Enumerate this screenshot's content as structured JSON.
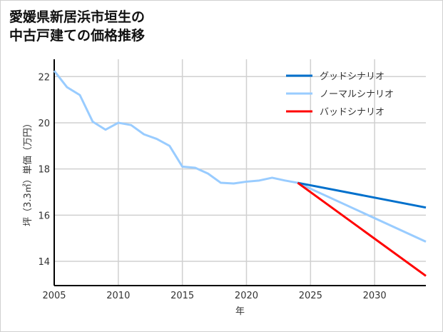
{
  "title_lines": [
    "愛媛県新居浜市垣生の",
    "中古戸建ての価格推移"
  ],
  "chart_data": {
    "type": "line",
    "title": "愛媛県新居浜市垣生の中古戸建ての価格推移",
    "xlabel": "年",
    "ylabel": "坪（3.3㎡）単価（万円）",
    "xlim": [
      2005,
      2034
    ],
    "ylim": [
      12.95,
      22.75
    ],
    "xticks": [
      2005,
      2010,
      2015,
      2020,
      2025,
      2030
    ],
    "yticks": [
      14,
      16,
      18,
      20,
      22
    ],
    "grid": true,
    "legend_position": "top-right",
    "series": [
      {
        "name": "ノーマルシナリオ",
        "color": "#99ccff",
        "x": [
          2005,
          2006,
          2007,
          2008,
          2009,
          2010,
          2011,
          2012,
          2013,
          2014,
          2015,
          2016,
          2017,
          2018,
          2019,
          2020,
          2021,
          2022,
          2023,
          2024,
          2034
        ],
        "y": [
          22.25,
          21.54,
          21.2,
          20.05,
          19.7,
          20.0,
          19.9,
          19.5,
          19.3,
          19.0,
          18.1,
          18.05,
          17.8,
          17.4,
          17.37,
          17.45,
          17.5,
          17.62,
          17.5,
          17.4,
          14.85
        ]
      },
      {
        "name": "グッドシナリオ",
        "color": "#0070cc",
        "x": [
          2024,
          2034
        ],
        "y": [
          17.4,
          16.33
        ]
      },
      {
        "name": "バッドシナリオ",
        "color": "#ff0000",
        "x": [
          2024,
          2034
        ],
        "y": [
          17.4,
          13.37
        ]
      }
    ],
    "legend_order": [
      1,
      0,
      2
    ]
  }
}
